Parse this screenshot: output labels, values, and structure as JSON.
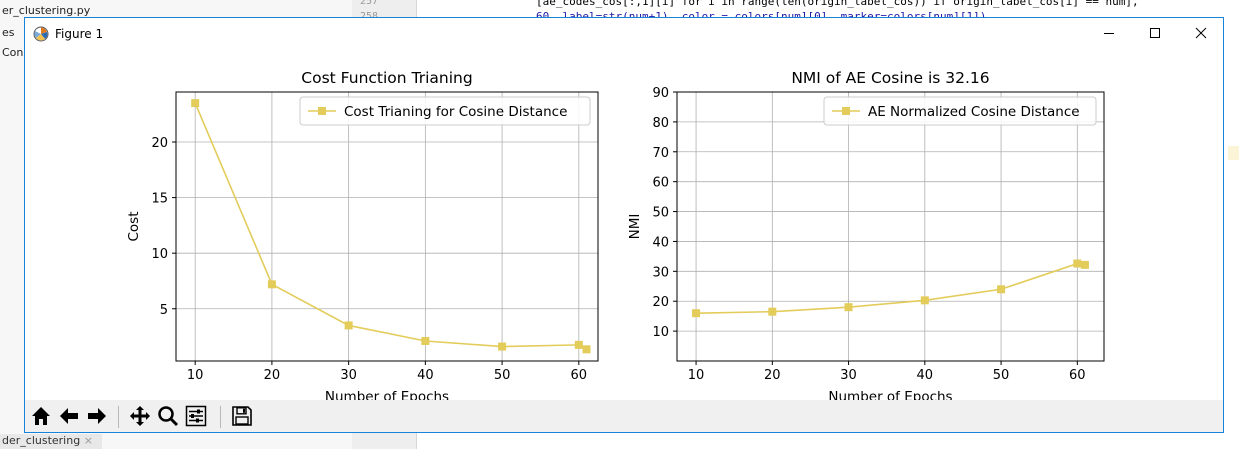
{
  "ide": {
    "files": [
      "er_clustering.py",
      "es",
      "Cons"
    ],
    "line_numbers": [
      "257",
      "258"
    ],
    "code_lines": [
      "[ae_codes_cos[:,1][i] for i in range(len(origin_label_cos)) if origin_label_cos[i] == num],",
      "60, label=str(num+1), color = colors[num][0], marker=colors[num][1])"
    ],
    "bottom_tab": "der_clustering"
  },
  "window": {
    "title": "Figure 1",
    "minimize_icon": "minimize-icon",
    "maximize_icon": "maximize-icon",
    "close_icon": "close-icon"
  },
  "toolbar": {
    "icons": [
      "home-icon",
      "back-arrow-icon",
      "forward-arrow-icon",
      "pan-icon",
      "zoom-icon",
      "configure-subplots-icon",
      "save-icon"
    ]
  },
  "chart_data": [
    {
      "type": "line",
      "title": "Cost Function Trianing",
      "xlabel": "Number of Epochs",
      "ylabel": "Cost",
      "xlim": [
        7.5,
        62.5
      ],
      "ylim": [
        0.3,
        24.5
      ],
      "xticks": [
        10,
        20,
        30,
        40,
        50,
        60
      ],
      "yticks": [
        5,
        10,
        15,
        20
      ],
      "grid": true,
      "legend_position": "top-right",
      "series": [
        {
          "name": "Cost Trianing for Cosine Distance",
          "color": "#e3cc5a",
          "marker": "square",
          "x": [
            10,
            20,
            30,
            40,
            50,
            60,
            61
          ],
          "y": [
            23.5,
            7.2,
            3.5,
            2.1,
            1.6,
            1.75,
            1.35
          ]
        }
      ]
    },
    {
      "type": "line",
      "title": "NMI of AE Cosine is 32.16",
      "xlabel": "Number of Epochs",
      "ylabel": "NMI",
      "xlim": [
        7.5,
        63.5
      ],
      "ylim": [
        0,
        90
      ],
      "xticks": [
        10,
        20,
        30,
        40,
        50,
        60
      ],
      "yticks": [
        10,
        20,
        30,
        40,
        50,
        60,
        70,
        80,
        90
      ],
      "grid": true,
      "legend_position": "top-right",
      "series": [
        {
          "name": "AE Normalized Cosine Distance",
          "color": "#e3cc5a",
          "marker": "square",
          "x": [
            10,
            20,
            30,
            40,
            50,
            60,
            61
          ],
          "y": [
            16,
            16.5,
            18,
            20.3,
            24,
            32.6,
            32.16
          ]
        }
      ]
    }
  ]
}
